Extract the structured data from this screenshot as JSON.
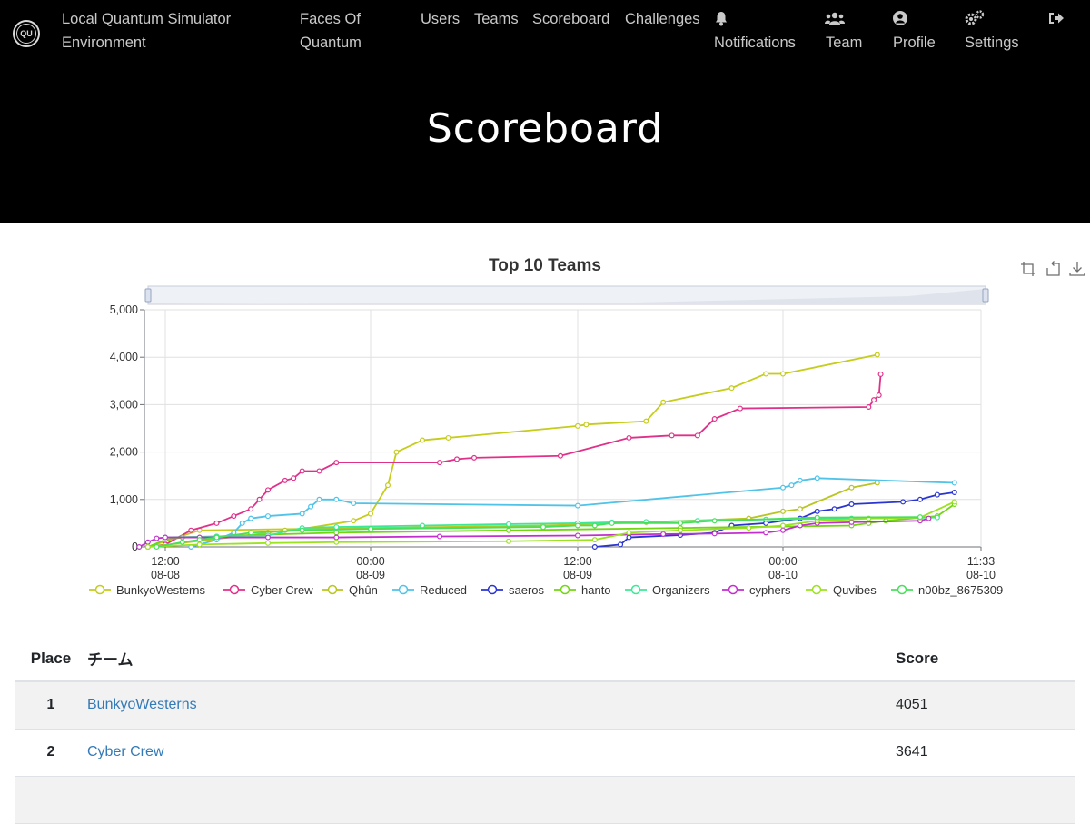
{
  "nav": {
    "brand": [
      "Local Quantum Simulator",
      "Environment"
    ],
    "logo_text": "QU",
    "faces": [
      "Faces Of",
      "Quantum"
    ],
    "users": "Users",
    "teams": "Teams",
    "scoreboard": "Scoreboard",
    "challenges": "Challenges",
    "notifications": "Notifications",
    "team": "Team",
    "profile": "Profile",
    "settings": "Settings",
    "icons": [
      "bell-icon",
      "users-icon",
      "user-circle-icon",
      "cogs-icon",
      "sign-out-icon"
    ]
  },
  "page": {
    "title": "Scoreboard"
  },
  "chart_data": {
    "type": "line",
    "title": "Top 10 Teams",
    "ylim": [
      0,
      5000
    ],
    "yticks": [
      "5,000",
      "4,000",
      "3,000",
      "2,000",
      "1,000",
      "0"
    ],
    "xticks": [
      [
        "12:00",
        "08-08"
      ],
      [
        "00:00",
        "08-09"
      ],
      [
        "12:00",
        "08-09"
      ],
      [
        "00:00",
        "08-10"
      ],
      [
        "11:33",
        "08-10"
      ]
    ],
    "x_unit": "hours from 08-08 12:00",
    "grid": true,
    "legend_position": "bottom",
    "series": [
      {
        "name": "BunkyoWesterns",
        "color": "#c5cc1a",
        "points": [
          [
            -1,
            0
          ],
          [
            2,
            350
          ],
          [
            8,
            380
          ],
          [
            11,
            550
          ],
          [
            12,
            700
          ],
          [
            13,
            1300
          ],
          [
            13.5,
            2000
          ],
          [
            15,
            2250
          ],
          [
            16.5,
            2300
          ],
          [
            24,
            2550
          ],
          [
            24.5,
            2580
          ],
          [
            28,
            2650
          ],
          [
            29,
            3050
          ],
          [
            33,
            3350
          ],
          [
            35,
            3650
          ],
          [
            36,
            3650
          ],
          [
            41.5,
            4051
          ]
        ]
      },
      {
        "name": "Cyber Crew",
        "color": "#e0318a",
        "points": [
          [
            -1,
            0
          ],
          [
            0,
            50
          ],
          [
            1.5,
            350
          ],
          [
            3,
            500
          ],
          [
            4,
            650
          ],
          [
            5,
            800
          ],
          [
            5.5,
            1000
          ],
          [
            6,
            1200
          ],
          [
            7,
            1400
          ],
          [
            7.5,
            1450
          ],
          [
            8,
            1600
          ],
          [
            9,
            1600
          ],
          [
            10,
            1780
          ],
          [
            16,
            1780
          ],
          [
            17,
            1850
          ],
          [
            18,
            1880
          ],
          [
            23,
            1920
          ],
          [
            27,
            2300
          ],
          [
            29.5,
            2350
          ],
          [
            31,
            2350
          ],
          [
            32,
            2700
          ],
          [
            33.5,
            2920
          ],
          [
            41,
            2950
          ],
          [
            41.3,
            3100
          ],
          [
            41.6,
            3200
          ],
          [
            41.7,
            3641
          ]
        ]
      },
      {
        "name": "Qhûn",
        "color": "#b9c520",
        "points": [
          [
            -1,
            0
          ],
          [
            5,
            250
          ],
          [
            6,
            300
          ],
          [
            7,
            350
          ],
          [
            8,
            380
          ],
          [
            22,
            450
          ],
          [
            28,
            520
          ],
          [
            34,
            600
          ],
          [
            36,
            750
          ],
          [
            37,
            800
          ],
          [
            40,
            1250
          ],
          [
            41.5,
            1350
          ]
        ]
      },
      {
        "name": "Reduced",
        "color": "#4fc3e8",
        "points": [
          [
            1.5,
            0
          ],
          [
            3,
            150
          ],
          [
            4,
            300
          ],
          [
            4.5,
            500
          ],
          [
            5,
            600
          ],
          [
            6,
            650
          ],
          [
            8,
            700
          ],
          [
            8.5,
            850
          ],
          [
            9,
            1000
          ],
          [
            10,
            1000
          ],
          [
            11,
            920
          ],
          [
            24,
            870
          ],
          [
            36,
            1250
          ],
          [
            36.5,
            1300
          ],
          [
            37,
            1400
          ],
          [
            38,
            1450
          ],
          [
            46,
            1350
          ]
        ]
      },
      {
        "name": "saeros",
        "color": "#2a34d1",
        "points": [
          [
            25,
            0
          ],
          [
            26.5,
            50
          ],
          [
            27,
            200
          ],
          [
            30,
            250
          ],
          [
            32,
            300
          ],
          [
            33,
            450
          ],
          [
            35,
            500
          ],
          [
            37,
            600
          ],
          [
            38,
            750
          ],
          [
            39,
            800
          ],
          [
            40,
            900
          ],
          [
            43,
            950
          ],
          [
            44,
            1000
          ],
          [
            45,
            1100
          ],
          [
            46,
            1150
          ]
        ]
      },
      {
        "name": "hanto",
        "color": "#72d613",
        "points": [
          [
            -1,
            0
          ],
          [
            0,
            150
          ],
          [
            1,
            200
          ],
          [
            3,
            220
          ],
          [
            5,
            250
          ],
          [
            10,
            300
          ],
          [
            20,
            350
          ],
          [
            30,
            400
          ],
          [
            40,
            450
          ],
          [
            41,
            500
          ],
          [
            42,
            550
          ],
          [
            45,
            650
          ],
          [
            46,
            900
          ]
        ]
      },
      {
        "name": "Organizers",
        "color": "#3ce896",
        "points": [
          [
            0,
            200
          ],
          [
            3,
            220
          ],
          [
            6,
            240
          ],
          [
            8,
            400
          ],
          [
            10,
            420
          ],
          [
            15,
            450
          ],
          [
            20,
            480
          ],
          [
            24,
            500
          ],
          [
            26,
            520
          ],
          [
            28,
            530
          ],
          [
            31,
            550
          ],
          [
            35,
            580
          ],
          [
            40,
            600
          ],
          [
            45,
            620
          ]
        ]
      },
      {
        "name": "cyphers",
        "color": "#c32fce",
        "points": [
          [
            -1.5,
            0
          ],
          [
            -1,
            100
          ],
          [
            -0.5,
            180
          ],
          [
            0,
            200
          ],
          [
            2,
            200
          ],
          [
            6,
            200
          ],
          [
            10,
            200
          ],
          [
            16,
            220
          ],
          [
            24,
            240
          ],
          [
            29,
            270
          ],
          [
            32,
            280
          ],
          [
            35,
            300
          ],
          [
            36,
            350
          ],
          [
            37,
            450
          ],
          [
            38,
            500
          ],
          [
            40,
            520
          ],
          [
            44,
            550
          ],
          [
            44.5,
            600
          ]
        ]
      },
      {
        "name": "Quvibes",
        "color": "#9be21f",
        "points": [
          [
            -1,
            0
          ],
          [
            2,
            50
          ],
          [
            6,
            80
          ],
          [
            10,
            100
          ],
          [
            20,
            120
          ],
          [
            25,
            150
          ],
          [
            27,
            300
          ],
          [
            30,
            350
          ],
          [
            34,
            400
          ],
          [
            36,
            450
          ],
          [
            38,
            550
          ],
          [
            41,
            600
          ],
          [
            44,
            620
          ],
          [
            46,
            950
          ]
        ]
      },
      {
        "name": "n00bz_8675309",
        "color": "#49df5c",
        "points": [
          [
            -0.5,
            0
          ],
          [
            1,
            100
          ],
          [
            2,
            150
          ],
          [
            3,
            200
          ],
          [
            5,
            300
          ],
          [
            8,
            350
          ],
          [
            12,
            380
          ],
          [
            22,
            420
          ],
          [
            24,
            450
          ],
          [
            25,
            450
          ],
          [
            26,
            500
          ],
          [
            30,
            500
          ],
          [
            32,
            550
          ],
          [
            38,
            620
          ],
          [
            44,
            630
          ]
        ]
      }
    ]
  },
  "toolbox": {
    "icons": [
      "zoom-icon",
      "restore-icon",
      "save-image-icon"
    ]
  },
  "table": {
    "headers": {
      "place": "Place",
      "team": "チーム",
      "score": "Score"
    },
    "rows": [
      {
        "place": "1",
        "team": "BunkyoWesterns",
        "score": "4051"
      },
      {
        "place": "2",
        "team": "Cyber Crew",
        "score": "3641"
      }
    ]
  }
}
